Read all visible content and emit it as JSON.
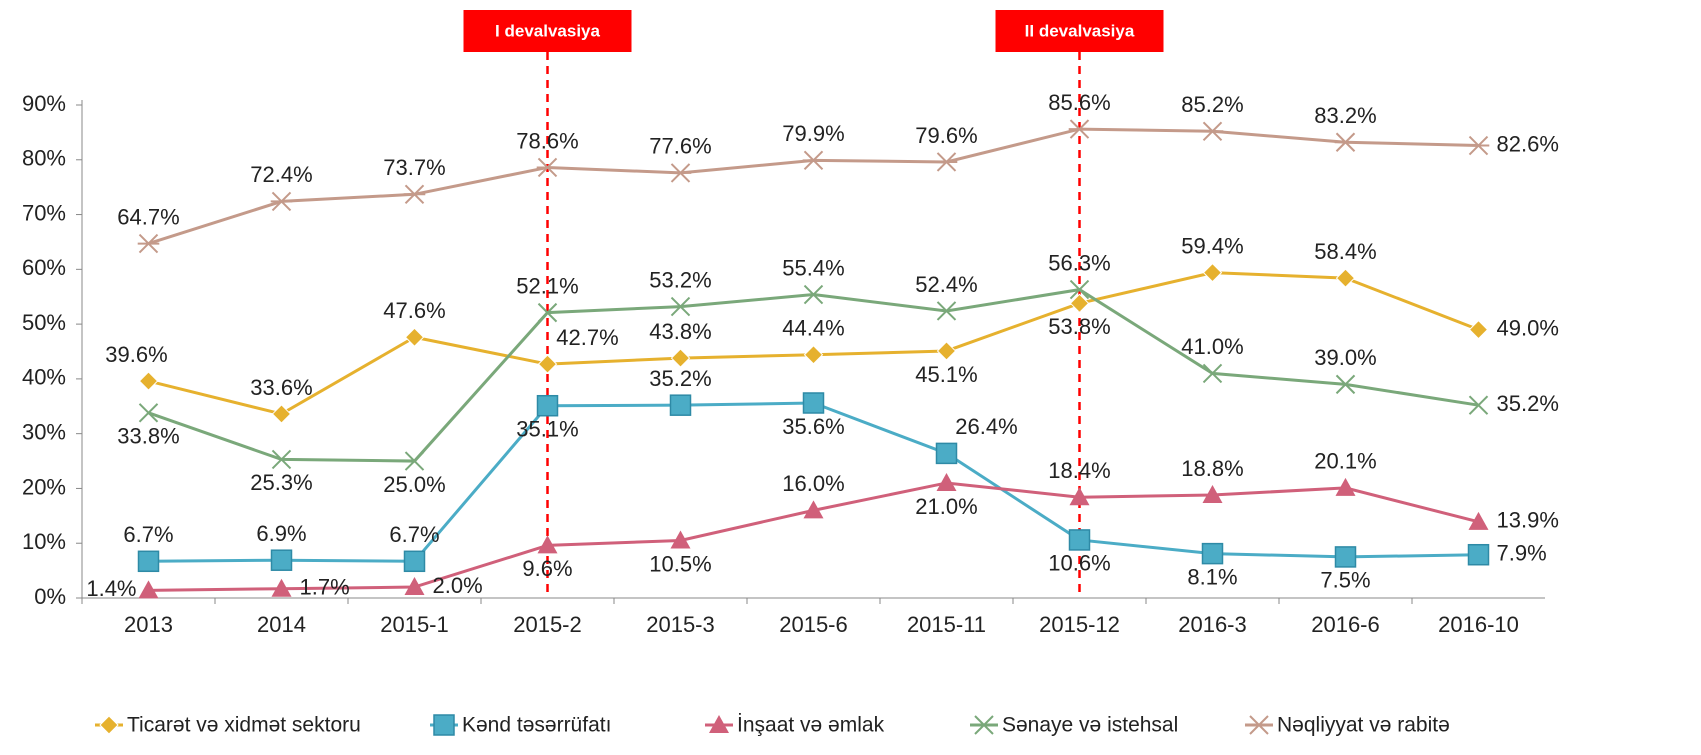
{
  "chart_data": {
    "type": "line",
    "categories": [
      "2013",
      "2014",
      "2015-1",
      "2015-2",
      "2015-3",
      "2015-6",
      "2015-11",
      "2015-12",
      "2016-3",
      "2016-6",
      "2016-10"
    ],
    "series": [
      {
        "name": "Ticarət və xidmət sektoru",
        "color": "#e6b12e",
        "marker": "diamond",
        "values": [
          39.6,
          33.6,
          47.6,
          42.7,
          43.8,
          44.4,
          45.1,
          53.8,
          59.4,
          58.4,
          49.0
        ],
        "value_labels": [
          "39.6%",
          "33.6%",
          "47.6%",
          "42.7%",
          "43.8%",
          "44.4%",
          "45.1%",
          "53.8%",
          "59.4%",
          "58.4%",
          "49.0%"
        ]
      },
      {
        "name": "Kənd təsərrüfatı",
        "color": "#4bacc6",
        "marker": "square",
        "values": [
          6.7,
          6.9,
          6.7,
          35.1,
          35.2,
          35.6,
          26.4,
          10.6,
          8.1,
          7.5,
          7.9
        ],
        "value_labels": [
          "6.7%",
          "6.9%",
          "6.7%",
          "35.1%",
          "35.2%",
          "35.6%",
          "26.4%",
          "10.6%",
          "8.1%",
          "7.5%",
          "7.9%"
        ]
      },
      {
        "name": "İnşaat və əmlak",
        "color": "#d0607a",
        "marker": "triangle",
        "values": [
          1.4,
          1.7,
          2.0,
          9.6,
          10.5,
          16.0,
          21.0,
          18.4,
          18.8,
          20.1,
          13.9
        ],
        "value_labels": [
          "1.4%",
          "1.7%",
          "2.0%",
          "9.6%",
          "10.5%",
          "16.0%",
          "21.0%",
          "18.4%",
          "18.8%",
          "20.1%",
          "13.9%"
        ]
      },
      {
        "name": "Sənaye və istehsal",
        "color": "#7aa87a",
        "marker": "x",
        "values": [
          33.8,
          25.3,
          25.0,
          52.1,
          53.2,
          55.4,
          52.4,
          56.3,
          41.0,
          39.0,
          35.2
        ],
        "value_labels": [
          "33.8%",
          "25.3%",
          "25.0%",
          "52.1%",
          "53.2%",
          "55.4%",
          "52.4%",
          "56.3%",
          "41.0%",
          "39.0%",
          "35.2%"
        ]
      },
      {
        "name": "Nəqliyyat və rabitə",
        "color": "#c49a8a",
        "marker": "star",
        "values": [
          64.7,
          72.4,
          73.7,
          78.6,
          77.6,
          79.9,
          79.6,
          85.6,
          85.2,
          83.2,
          82.6
        ],
        "value_labels": [
          "64.7%",
          "72.4%",
          "73.7%",
          "78.6%",
          "77.6%",
          "79.9%",
          "79.6%",
          "85.6%",
          "85.2%",
          "83.2%",
          "82.6%"
        ]
      }
    ],
    "ylim": [
      0,
      90
    ],
    "yticks": [
      {
        "value": 0,
        "label": "0%"
      },
      {
        "value": 10,
        "label": "10%"
      },
      {
        "value": 20,
        "label": "20%"
      },
      {
        "value": 30,
        "label": "30%"
      },
      {
        "value": 40,
        "label": "40%"
      },
      {
        "value": 50,
        "label": "50%"
      },
      {
        "value": 60,
        "label": "60%"
      },
      {
        "value": 70,
        "label": "70%"
      },
      {
        "value": 80,
        "label": "80%"
      },
      {
        "value": 90,
        "label": "90%"
      }
    ],
    "annotations": [
      {
        "text": "I devalvasiya",
        "category": "2015-2",
        "color": "#ff0000"
      },
      {
        "text": "II devalvasiya",
        "category": "2015-12",
        "color": "#ff0000"
      }
    ],
    "legend": "bottom"
  }
}
